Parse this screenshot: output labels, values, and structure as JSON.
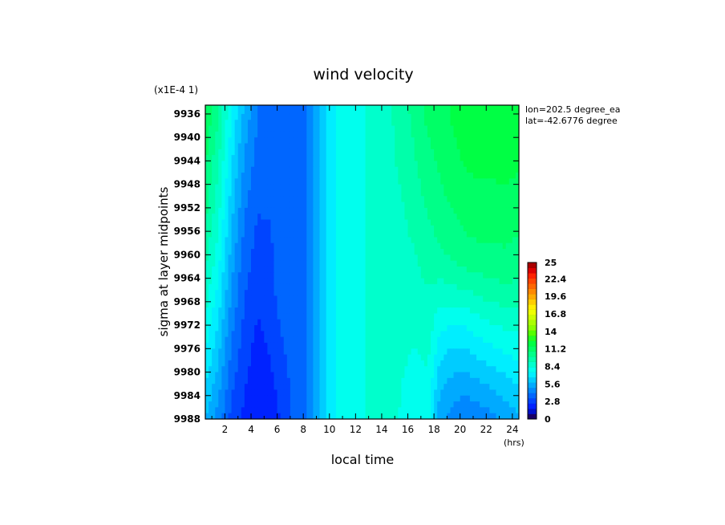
{
  "chart_data": {
    "type": "heatmap",
    "title": "wind velocity",
    "xlabel": "local time",
    "x_unit": "(hrs)",
    "ylabel": "sigma at layer midpoints",
    "y_scale_note": "(x1E-4 1)",
    "annotations": [
      "lon=202.5 degree_ea",
      "lat=-42.6776 degree"
    ],
    "x_ticks": [
      2,
      4,
      6,
      8,
      10,
      12,
      14,
      16,
      18,
      20,
      22,
      24
    ],
    "xlim": [
      0.5,
      24.5
    ],
    "y_ticks": [
      9936,
      9940,
      9944,
      9948,
      9952,
      9956,
      9960,
      9964,
      9968,
      9972,
      9976,
      9980,
      9984,
      9988
    ],
    "ylim": [
      9934.5,
      9988
    ],
    "colorbar": {
      "range": [
        0,
        25
      ],
      "tick_labels": [
        "0",
        "2.8",
        "5.6",
        "8.4",
        "11.2",
        "14",
        "16.8",
        "19.6",
        "22.4",
        "25"
      ],
      "colors": [
        "#1a0066",
        "#0011cc",
        "#0022ff",
        "#0044ff",
        "#0066ff",
        "#0088ff",
        "#00aaff",
        "#00ccff",
        "#00eeff",
        "#00ffee",
        "#00ffcc",
        "#00ffaa",
        "#00ff88",
        "#00ff66",
        "#00ff44",
        "#22ff22",
        "#55ff00",
        "#88ff00",
        "#aaff00",
        "#ccff00",
        "#eeff00",
        "#ffee00",
        "#ffcc00",
        "#ffaa00",
        "#ff8800",
        "#ff6600",
        "#ff4400",
        "#ff2200",
        "#dd0000",
        "#aa0000"
      ]
    },
    "x": [
      0.5,
      1.5,
      2.5,
      3.5,
      4.5,
      5.5,
      6.5,
      7.5,
      8.5,
      9.5,
      10.5,
      11.5,
      12.5,
      13.5,
      14.5,
      15.5,
      16.5,
      17.5,
      18.5,
      19.5,
      20.5,
      21.5,
      22.5,
      23.5,
      24.5
    ],
    "y": [
      9936,
      9940,
      9944,
      9948,
      9952,
      9956,
      9960,
      9964,
      9968,
      9972,
      9976,
      9980,
      9984,
      9988
    ],
    "z": [
      [
        11.5,
        10.0,
        7.5,
        5.6,
        4.2,
        3.8,
        4.0,
        3.8,
        4.3,
        6.5,
        7.6,
        7.8,
        8.2,
        8.6,
        9.0,
        9.5,
        10.3,
        11.0,
        11.4,
        11.8,
        12.1,
        12.3,
        12.4,
        12.3,
        12.1
      ],
      [
        11.3,
        9.7,
        7.2,
        5.2,
        4.0,
        3.7,
        4.0,
        3.8,
        4.3,
        6.5,
        7.6,
        7.8,
        8.2,
        8.6,
        9.0,
        9.4,
        10.1,
        10.8,
        11.2,
        11.6,
        12.0,
        12.2,
        12.2,
        12.2,
        12.0
      ],
      [
        11.0,
        9.3,
        6.8,
        4.9,
        3.8,
        3.6,
        4.0,
        3.8,
        4.3,
        6.5,
        7.6,
        7.8,
        8.2,
        8.6,
        9.0,
        9.3,
        9.9,
        10.6,
        11.0,
        11.4,
        11.8,
        12.0,
        12.0,
        12.0,
        11.8
      ],
      [
        10.6,
        9.0,
        6.5,
        4.6,
        3.6,
        3.5,
        4.0,
        3.8,
        4.3,
        6.5,
        7.6,
        7.8,
        8.2,
        8.6,
        9.0,
        9.2,
        9.7,
        10.4,
        10.8,
        11.2,
        11.5,
        11.6,
        11.6,
        11.7,
        11.5
      ],
      [
        10.3,
        8.7,
        6.1,
        4.3,
        3.4,
        3.4,
        4.0,
        3.8,
        4.3,
        6.5,
        7.6,
        7.8,
        8.2,
        8.6,
        9.0,
        9.1,
        9.5,
        10.1,
        10.5,
        10.9,
        11.2,
        11.3,
        11.3,
        11.4,
        11.2
      ],
      [
        9.9,
        8.3,
        5.8,
        4.0,
        3.2,
        3.3,
        4.0,
        3.8,
        4.3,
        6.5,
        7.6,
        7.8,
        8.2,
        8.6,
        9.0,
        9.0,
        9.3,
        9.8,
        10.2,
        10.6,
        10.9,
        11.0,
        11.0,
        11.1,
        10.9
      ],
      [
        9.5,
        7.9,
        5.5,
        3.8,
        3.0,
        3.2,
        4.0,
        3.8,
        4.3,
        6.5,
        7.6,
        7.8,
        8.2,
        8.6,
        9.0,
        8.9,
        9.1,
        9.5,
        9.8,
        10.2,
        10.5,
        10.6,
        10.6,
        10.7,
        10.5
      ],
      [
        9.1,
        7.5,
        5.1,
        3.5,
        2.8,
        3.1,
        3.9,
        3.8,
        4.3,
        6.5,
        7.6,
        7.8,
        8.2,
        8.6,
        9.0,
        8.8,
        8.9,
        9.3,
        9.2,
        9.5,
        9.7,
        9.9,
        10.0,
        10.2,
        10.0
      ],
      [
        8.6,
        7.1,
        4.8,
        3.3,
        2.6,
        3.0,
        3.8,
        3.8,
        4.3,
        6.5,
        7.6,
        7.8,
        8.2,
        8.6,
        9.0,
        8.7,
        8.7,
        9.0,
        8.5,
        8.5,
        8.6,
        9.0,
        9.2,
        9.4,
        9.3
      ],
      [
        8.1,
        6.6,
        4.4,
        3.1,
        2.4,
        2.8,
        3.6,
        3.8,
        4.3,
        6.5,
        7.6,
        7.8,
        8.2,
        8.6,
        9.0,
        8.6,
        8.5,
        8.8,
        7.7,
        7.5,
        7.6,
        8.0,
        8.3,
        8.5,
        8.6
      ],
      [
        7.6,
        6.1,
        4.1,
        2.9,
        2.2,
        2.6,
        3.3,
        3.8,
        4.3,
        6.5,
        7.6,
        7.8,
        8.2,
        8.6,
        9.0,
        8.5,
        8.3,
        8.6,
        7.0,
        6.6,
        6.7,
        7.1,
        7.4,
        7.7,
        7.9
      ],
      [
        7.0,
        5.6,
        3.7,
        2.7,
        2.0,
        2.4,
        3.1,
        3.8,
        4.3,
        6.5,
        7.6,
        7.8,
        8.2,
        8.6,
        9.0,
        8.4,
        8.1,
        8.3,
        6.3,
        5.9,
        5.8,
        6.2,
        6.5,
        6.8,
        7.1
      ],
      [
        6.4,
        5.1,
        3.4,
        2.5,
        1.8,
        2.2,
        2.9,
        3.8,
        4.3,
        6.5,
        7.6,
        7.8,
        8.2,
        8.6,
        9.0,
        8.3,
        7.9,
        8.1,
        5.7,
        5.2,
        5.0,
        5.3,
        5.6,
        6.0,
        6.4
      ],
      [
        5.8,
        4.6,
        3.1,
        2.3,
        1.6,
        2.0,
        2.7,
        3.8,
        4.3,
        6.5,
        7.6,
        7.8,
        8.2,
        8.6,
        9.0,
        8.2,
        7.7,
        7.9,
        5.2,
        4.6,
        4.3,
        4.5,
        4.8,
        5.2,
        5.7
      ]
    ]
  }
}
